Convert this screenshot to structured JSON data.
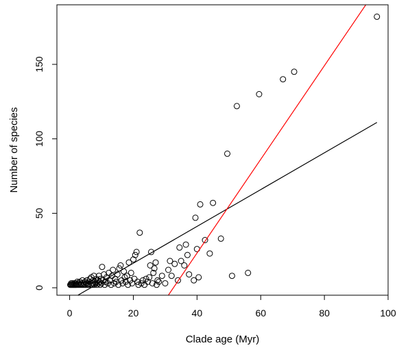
{
  "chart_data": {
    "type": "scatter",
    "title": "",
    "xlabel": "Clade age (Myr)",
    "ylabel": "Number of species",
    "xlim": [
      -4,
      100
    ],
    "ylim": [
      -5,
      190
    ],
    "xticks": [
      0,
      20,
      40,
      60,
      80,
      100
    ],
    "xtick_labels": [
      "0",
      "20",
      "40",
      "60",
      "80",
      "100"
    ],
    "yticks": [
      0,
      50,
      100,
      150
    ],
    "ytick_labels": [
      "0",
      "50",
      "100",
      "150"
    ],
    "grid": false,
    "legend": "none",
    "colors": {
      "points": "#000000",
      "line_black": "#000000",
      "line_red": "#ff0000"
    },
    "points": [
      [
        0.2,
        2
      ],
      [
        0.4,
        2
      ],
      [
        0.5,
        3
      ],
      [
        0.7,
        2
      ],
      [
        0.9,
        2
      ],
      [
        1.0,
        3
      ],
      [
        1.2,
        2
      ],
      [
        1.4,
        2
      ],
      [
        1.5,
        3
      ],
      [
        1.7,
        2
      ],
      [
        1.9,
        2
      ],
      [
        2.0,
        3
      ],
      [
        2.2,
        2
      ],
      [
        2.4,
        4
      ],
      [
        2.6,
        2
      ],
      [
        2.8,
        3
      ],
      [
        3.0,
        2
      ],
      [
        3.2,
        4
      ],
      [
        3.4,
        2
      ],
      [
        3.6,
        3
      ],
      [
        3.8,
        2
      ],
      [
        4.0,
        5
      ],
      [
        4.2,
        2
      ],
      [
        4.4,
        3
      ],
      [
        4.6,
        2
      ],
      [
        4.8,
        4
      ],
      [
        5.0,
        2
      ],
      [
        5.2,
        3
      ],
      [
        5.4,
        5
      ],
      [
        5.6,
        2
      ],
      [
        5.8,
        3
      ],
      [
        6.0,
        2
      ],
      [
        6.2,
        4
      ],
      [
        6.4,
        6
      ],
      [
        6.6,
        2
      ],
      [
        6.8,
        7
      ],
      [
        7.0,
        3
      ],
      [
        7.2,
        2
      ],
      [
        7.4,
        5
      ],
      [
        7.6,
        8
      ],
      [
        7.8,
        2
      ],
      [
        8.0,
        4
      ],
      [
        8.2,
        3
      ],
      [
        8.4,
        6
      ],
      [
        8.6,
        2
      ],
      [
        8.8,
        5
      ],
      [
        9.0,
        3
      ],
      [
        9.2,
        8
      ],
      [
        9.4,
        4
      ],
      [
        9.6,
        2
      ],
      [
        9.8,
        6
      ],
      [
        10.0,
        3
      ],
      [
        10.2,
        14
      ],
      [
        10.5,
        5
      ],
      [
        10.8,
        9
      ],
      [
        11.0,
        2
      ],
      [
        11.3,
        4
      ],
      [
        11.6,
        7
      ],
      [
        12.0,
        3
      ],
      [
        12.3,
        10
      ],
      [
        12.6,
        5
      ],
      [
        13.0,
        2
      ],
      [
        13.3,
        8
      ],
      [
        13.6,
        12
      ],
      [
        14.0,
        3
      ],
      [
        14.3,
        6
      ],
      [
        14.6,
        4
      ],
      [
        15.0,
        9
      ],
      [
        15.3,
        2
      ],
      [
        15.6,
        13
      ],
      [
        16.0,
        15
      ],
      [
        16.3,
        5
      ],
      [
        16.6,
        3
      ],
      [
        17.0,
        11
      ],
      [
        17.3,
        7
      ],
      [
        17.6,
        4
      ],
      [
        18.0,
        8
      ],
      [
        18.3,
        2
      ],
      [
        18.6,
        17
      ],
      [
        19.0,
        5
      ],
      [
        19.3,
        10
      ],
      [
        19.6,
        3
      ],
      [
        20.0,
        19
      ],
      [
        20.3,
        6
      ],
      [
        20.6,
        22
      ],
      [
        21.0,
        24
      ],
      [
        21.3,
        4
      ],
      [
        21.6,
        2
      ],
      [
        22.0,
        37
      ],
      [
        22.5,
        3
      ],
      [
        23.0,
        5
      ],
      [
        23.5,
        2
      ],
      [
        24.0,
        6
      ],
      [
        24.5,
        4
      ],
      [
        25.0,
        7
      ],
      [
        25.3,
        15
      ],
      [
        25.6,
        24
      ],
      [
        26.0,
        3
      ],
      [
        26.3,
        10
      ],
      [
        26.6,
        13
      ],
      [
        27.0,
        17
      ],
      [
        27.3,
        2
      ],
      [
        27.6,
        5
      ],
      [
        28.0,
        4
      ],
      [
        29.0,
        8
      ],
      [
        30.0,
        3
      ],
      [
        31.0,
        12
      ],
      [
        31.5,
        18
      ],
      [
        32.0,
        8
      ],
      [
        33.0,
        16
      ],
      [
        34.0,
        5
      ],
      [
        34.5,
        27
      ],
      [
        35.0,
        18
      ],
      [
        36.0,
        15
      ],
      [
        36.5,
        29
      ],
      [
        37.0,
        22
      ],
      [
        37.5,
        9
      ],
      [
        39.0,
        5
      ],
      [
        39.5,
        47
      ],
      [
        40.0,
        26
      ],
      [
        40.5,
        7
      ],
      [
        41.0,
        56
      ],
      [
        42.5,
        32
      ],
      [
        44.0,
        23
      ],
      [
        45.0,
        57
      ],
      [
        47.5,
        33
      ],
      [
        49.5,
        90
      ],
      [
        51.0,
        8
      ],
      [
        52.5,
        122
      ],
      [
        56.0,
        10
      ],
      [
        59.5,
        130
      ],
      [
        67.0,
        140
      ],
      [
        70.5,
        145
      ],
      [
        96.5,
        182
      ]
    ],
    "lines": [
      {
        "color": "#000000",
        "x": [
          2.6,
          96.5
        ],
        "y": [
          -5,
          111
        ]
      },
      {
        "color": "#ff0000",
        "x": [
          31.0,
          93.0
        ],
        "y": [
          -5,
          190
        ]
      }
    ]
  }
}
